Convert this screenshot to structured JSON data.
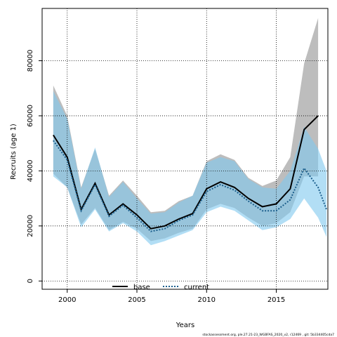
{
  "chart_data": {
    "type": "area",
    "title": "",
    "xlabel": "Years",
    "ylabel": "Recruits (age 1)",
    "xlim": [
      1998.2,
      2018.7
    ],
    "ylim": [
      -3000,
      99000
    ],
    "xticks": [
      2000,
      2005,
      2010,
      2015
    ],
    "yticks": [
      0,
      20000,
      40000,
      60000,
      80000
    ],
    "grid": true,
    "legend_position": "bottom-center",
    "x": [
      1999,
      2000,
      2001,
      2002,
      2003,
      2004,
      2005,
      2006,
      2007,
      2008,
      2009,
      2010,
      2011,
      2012,
      2013,
      2014,
      2015,
      2016,
      2017,
      2018
    ],
    "series": [
      {
        "name": "base",
        "color": "#000000",
        "band_color": "#bdbdbd",
        "line_style": "solid",
        "x": [
          1999,
          2000,
          2001,
          2002,
          2003,
          2004,
          2005,
          2006,
          2007,
          2008,
          2009,
          2010,
          2011,
          2012,
          2013,
          2014,
          2015,
          2016,
          2017,
          2018
        ],
        "values": [
          53000,
          45000,
          26000,
          35500,
          24000,
          28000,
          24000,
          19000,
          20000,
          22500,
          24500,
          33500,
          36000,
          34000,
          30000,
          27000,
          28000,
          33500,
          55000,
          60000
        ],
        "lower": [
          39000,
          34000,
          20500,
          26500,
          18500,
          21500,
          19000,
          14500,
          15500,
          17500,
          19000,
          26000,
          28000,
          26500,
          23000,
          20000,
          21000,
          25000,
          38000,
          38000
        ],
        "upper": [
          71000,
          60000,
          34000,
          48000,
          31000,
          36500,
          31000,
          25000,
          25500,
          29000,
          31000,
          43500,
          46000,
          44000,
          37500,
          34500,
          36500,
          45000,
          79000,
          95500
        ]
      },
      {
        "name": "current",
        "color": "#1b5e8c",
        "band_color": "#7fc8ee",
        "line_style": "dotted",
        "x": [
          1999,
          2000,
          2001,
          2002,
          2003,
          2004,
          2005,
          2006,
          2007,
          2008,
          2009,
          2010,
          2011,
          2012,
          2013,
          2014,
          2015,
          2016,
          2017,
          2018,
          2018.6
        ],
        "values": [
          51000,
          44000,
          25500,
          35000,
          23500,
          27500,
          23000,
          18000,
          19000,
          22000,
          24000,
          32500,
          35000,
          33000,
          29000,
          25500,
          25500,
          29500,
          41000,
          34000,
          26000
        ],
        "lower": [
          38000,
          34000,
          19500,
          26000,
          18000,
          21000,
          18000,
          13000,
          14500,
          16500,
          18500,
          25000,
          27000,
          25500,
          22000,
          18500,
          19500,
          22500,
          30000,
          23000,
          16000
        ],
        "upper": [
          69000,
          59000,
          33500,
          48500,
          30500,
          36000,
          30000,
          24500,
          25000,
          28500,
          31000,
          43000,
          45000,
          43500,
          37000,
          34000,
          33500,
          40000,
          56000,
          48000,
          40000
        ]
      }
    ],
    "credit": "stockassessment.org, ple.27.21-23_WGBFAS_2020_v2, r12469 , git: 5b334405cda7"
  }
}
